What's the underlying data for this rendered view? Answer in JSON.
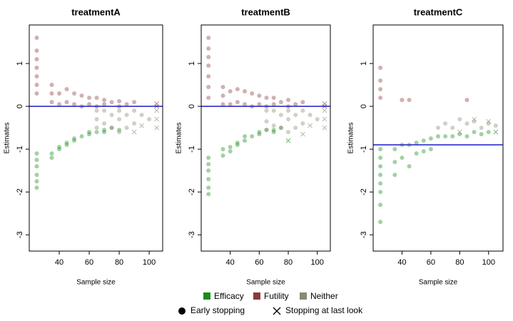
{
  "chart_data": [
    {
      "type": "scatter",
      "title": "treatmentA",
      "xlabel": "Sample size",
      "ylabel": "Estimates",
      "xlim": [
        20,
        109
      ],
      "ylim": [
        -3.38,
        1.9
      ],
      "xticks": [
        40,
        60,
        80,
        100
      ],
      "yticks": [
        -3,
        -2,
        -1,
        0,
        1
      ],
      "hline": 0,
      "hline_color": "#2b2bcc",
      "series": [
        {
          "name": "Efficacy",
          "color": "#1a8c1a",
          "x": [
            25,
            25,
            25,
            25,
            25,
            25,
            35,
            35,
            40,
            40,
            45,
            45,
            50,
            50,
            55,
            60,
            60,
            65,
            70,
            70,
            75,
            80
          ],
          "values": [
            -1.1,
            -1.25,
            -1.4,
            -1.6,
            -1.75,
            -1.9,
            -1.1,
            -1.2,
            -0.95,
            -1.0,
            -0.85,
            -0.9,
            -0.8,
            -0.75,
            -0.7,
            -0.65,
            -0.6,
            -0.6,
            -0.55,
            -0.6,
            -0.5,
            -0.55
          ],
          "stop": [
            0,
            0,
            0,
            0,
            0,
            0,
            0,
            0,
            0,
            0,
            0,
            0,
            0,
            0,
            0,
            0,
            0,
            0,
            0,
            0,
            0,
            0
          ]
        },
        {
          "name": "Futility",
          "color": "#8b3a3a",
          "x": [
            25,
            25,
            25,
            25,
            25,
            25,
            25,
            35,
            35,
            35,
            40,
            40,
            45,
            45,
            50,
            50,
            55,
            55,
            60,
            60,
            65,
            65,
            70,
            70,
            75,
            80,
            80,
            85,
            90,
            105,
            105
          ],
          "values": [
            0.3,
            0.5,
            0.7,
            0.9,
            1.1,
            1.3,
            1.6,
            0.1,
            0.3,
            0.5,
            0.05,
            0.3,
            0.1,
            0.4,
            0.05,
            0.3,
            0.0,
            0.25,
            0.05,
            0.2,
            0.0,
            0.2,
            0.05,
            0.15,
            0.1,
            0.0,
            0.12,
            0.05,
            0.1,
            0.0,
            0.06
          ],
          "stop": [
            0,
            0,
            0,
            0,
            0,
            0,
            0,
            0,
            0,
            0,
            0,
            0,
            0,
            0,
            0,
            0,
            0,
            0,
            0,
            0,
            0,
            0,
            0,
            0,
            0,
            0,
            0,
            0,
            0,
            1,
            1
          ]
        },
        {
          "name": "Neither",
          "color": "#8a8a72",
          "x": [
            65,
            65,
            65,
            70,
            70,
            75,
            75,
            80,
            80,
            80,
            85,
            85,
            90,
            90,
            95,
            100,
            105,
            105,
            105,
            90,
            95
          ],
          "values": [
            -0.1,
            -0.3,
            -0.5,
            -0.1,
            -0.4,
            -0.2,
            -0.5,
            -0.1,
            -0.3,
            -0.6,
            -0.2,
            -0.5,
            -0.1,
            -0.4,
            -0.2,
            -0.3,
            -0.1,
            -0.3,
            -0.5,
            -0.6,
            -0.45
          ],
          "stop": [
            0,
            0,
            0,
            0,
            0,
            0,
            0,
            0,
            0,
            0,
            0,
            0,
            0,
            0,
            0,
            0,
            1,
            1,
            1,
            1,
            1
          ]
        }
      ]
    },
    {
      "type": "scatter",
      "title": "treatmentB",
      "xlabel": "Sample size",
      "ylabel": "Estimates",
      "xlim": [
        20,
        109
      ],
      "ylim": [
        -3.38,
        1.9
      ],
      "xticks": [
        40,
        60,
        80,
        100
      ],
      "yticks": [
        -3,
        -2,
        -1,
        0,
        1
      ],
      "hline": 0,
      "hline_color": "#2b2bcc",
      "series": [
        {
          "name": "Efficacy",
          "color": "#1a8c1a",
          "x": [
            25,
            25,
            25,
            25,
            25,
            25,
            35,
            35,
            40,
            40,
            45,
            45,
            50,
            50,
            55,
            60,
            60,
            65,
            70,
            70,
            75,
            80
          ],
          "values": [
            -1.2,
            -1.35,
            -1.5,
            -1.7,
            -1.9,
            -2.05,
            -1.0,
            -1.15,
            -0.95,
            -1.05,
            -0.85,
            -0.9,
            -0.8,
            -0.7,
            -0.7,
            -0.65,
            -0.6,
            -0.55,
            -0.55,
            -0.6,
            -0.5,
            -0.8
          ],
          "stop": [
            0,
            0,
            0,
            0,
            0,
            0,
            0,
            0,
            0,
            0,
            0,
            0,
            0,
            0,
            0,
            0,
            0,
            0,
            0,
            0,
            0,
            1
          ]
        },
        {
          "name": "Futility",
          "color": "#8b3a3a",
          "x": [
            25,
            25,
            25,
            25,
            25,
            25,
            25,
            35,
            35,
            35,
            40,
            40,
            45,
            45,
            50,
            50,
            55,
            55,
            60,
            60,
            65,
            65,
            70,
            70,
            75,
            80,
            80,
            85,
            90,
            105,
            105
          ],
          "values": [
            0.2,
            0.45,
            0.7,
            0.95,
            1.15,
            1.35,
            1.6,
            0.05,
            0.25,
            0.45,
            0.05,
            0.35,
            0.1,
            0.4,
            0.05,
            0.35,
            0.0,
            0.3,
            0.05,
            0.25,
            0.0,
            0.2,
            0.05,
            0.2,
            0.1,
            0.0,
            0.15,
            0.05,
            0.1,
            0.0,
            0.06
          ],
          "stop": [
            0,
            0,
            0,
            0,
            0,
            0,
            0,
            0,
            0,
            0,
            0,
            0,
            0,
            0,
            0,
            0,
            0,
            0,
            0,
            0,
            0,
            0,
            0,
            0,
            0,
            0,
            0,
            0,
            0,
            1,
            1
          ]
        },
        {
          "name": "Neither",
          "color": "#8a8a72",
          "x": [
            65,
            65,
            65,
            70,
            70,
            75,
            75,
            80,
            80,
            80,
            85,
            85,
            90,
            90,
            95,
            100,
            105,
            105,
            105,
            90,
            95
          ],
          "values": [
            -0.1,
            -0.35,
            -0.55,
            -0.1,
            -0.45,
            -0.2,
            -0.5,
            -0.1,
            -0.3,
            -0.6,
            -0.2,
            -0.5,
            -0.1,
            -0.4,
            -0.2,
            -0.3,
            -0.1,
            -0.3,
            -0.5,
            -0.65,
            -0.45
          ],
          "stop": [
            0,
            0,
            0,
            0,
            0,
            0,
            0,
            0,
            0,
            0,
            0,
            0,
            0,
            0,
            0,
            0,
            1,
            1,
            1,
            1,
            1
          ]
        }
      ]
    },
    {
      "type": "scatter",
      "title": "treatmentC",
      "xlabel": "Sample size",
      "ylabel": "Estimates",
      "xlim": [
        20,
        110
      ],
      "ylim": [
        -3.38,
        1.9
      ],
      "xticks": [
        40,
        60,
        80,
        100
      ],
      "yticks": [
        -3,
        -2,
        -1,
        0,
        1
      ],
      "hline": -0.9,
      "hline_color": "#2b2bcc",
      "series": [
        {
          "name": "Efficacy",
          "color": "#1a8c1a",
          "x": [
            25,
            25,
            25,
            25,
            25,
            25,
            25,
            25,
            35,
            35,
            35,
            40,
            40,
            45,
            45,
            50,
            50,
            55,
            55,
            60,
            60,
            65,
            70,
            75,
            80,
            85,
            90,
            95,
            100,
            105
          ],
          "values": [
            -1.0,
            -1.2,
            -1.4,
            -1.6,
            -1.8,
            -2.0,
            -2.3,
            -2.7,
            -1.0,
            -1.3,
            -1.6,
            -0.9,
            -1.2,
            -0.9,
            -1.4,
            -0.85,
            -1.1,
            -0.8,
            -1.05,
            -0.75,
            -1.0,
            -0.7,
            -0.7,
            -0.7,
            -0.65,
            -0.7,
            -0.6,
            -0.65,
            -0.6,
            -0.6
          ],
          "stop": [
            0,
            0,
            0,
            0,
            0,
            0,
            0,
            0,
            0,
            0,
            0,
            0,
            0,
            0,
            0,
            0,
            0,
            0,
            0,
            0,
            0,
            0,
            0,
            0,
            0,
            0,
            0,
            0,
            0,
            1
          ]
        },
        {
          "name": "Futility",
          "color": "#8b3a3a",
          "x": [
            25,
            25,
            25,
            25,
            40,
            45,
            85
          ],
          "values": [
            0.2,
            0.4,
            0.6,
            0.9,
            0.15,
            0.15,
            0.15
          ],
          "stop": [
            0,
            0,
            0,
            0,
            0,
            0,
            0
          ]
        },
        {
          "name": "Neither",
          "color": "#8a8a72",
          "x": [
            65,
            70,
            75,
            80,
            85,
            90,
            95,
            100,
            105,
            80,
            90,
            100
          ],
          "values": [
            -0.5,
            -0.4,
            -0.5,
            -0.3,
            -0.4,
            -0.35,
            -0.5,
            -0.4,
            -0.45,
            -0.6,
            -0.3,
            -0.35
          ],
          "stop": [
            0,
            0,
            0,
            0,
            0,
            0,
            0,
            0,
            0,
            1,
            1,
            1
          ]
        }
      ]
    }
  ],
  "legend": {
    "markers": [
      {
        "label": "Early stopping",
        "shape": "circle"
      },
      {
        "label": "Stopping at last look",
        "shape": "cross"
      }
    ]
  }
}
